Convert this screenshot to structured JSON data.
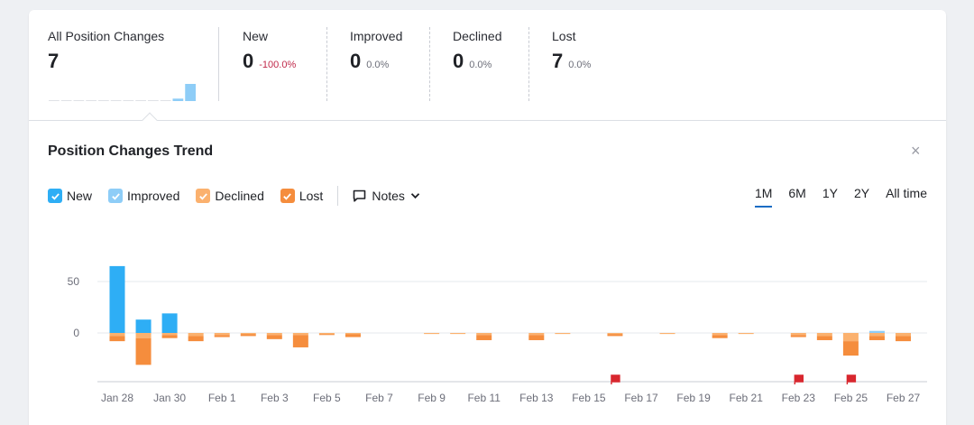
{
  "summary": {
    "items": [
      {
        "label": "All Position Changes",
        "value": "7",
        "change": ""
      },
      {
        "label": "New",
        "value": "0",
        "change": "-100.0%"
      },
      {
        "label": "Improved",
        "value": "0",
        "change": "0.0%"
      },
      {
        "label": "Declined",
        "value": "0",
        "change": "0.0%"
      },
      {
        "label": "Lost",
        "value": "7",
        "change": "0.0%"
      }
    ]
  },
  "trend": {
    "title": "Position Changes Trend",
    "close_label": "×",
    "legend": [
      {
        "label": "New",
        "color": "#2eaef5"
      },
      {
        "label": "Improved",
        "color": "#8ecdf7"
      },
      {
        "label": "Declined",
        "color": "#fbb16e"
      },
      {
        "label": "Lost",
        "color": "#f58d3d"
      }
    ],
    "notes_label": "Notes",
    "ranges": [
      "1M",
      "6M",
      "1Y",
      "2Y",
      "All time"
    ],
    "active_range": "1M"
  },
  "chart_data": {
    "type": "bar",
    "ytick_labels": [
      "50",
      "0"
    ],
    "x": [
      "Jan 28",
      "Jan 29",
      "Jan 30",
      "Jan 31",
      "Feb 1",
      "Feb 2",
      "Feb 3",
      "Feb 4",
      "Feb 5",
      "Feb 6",
      "Feb 7",
      "Feb 8",
      "Feb 9",
      "Feb 10",
      "Feb 11",
      "Feb 12",
      "Feb 13",
      "Feb 14",
      "Feb 15",
      "Feb 16",
      "Feb 17",
      "Feb 18",
      "Feb 19",
      "Feb 20",
      "Feb 21",
      "Feb 22",
      "Feb 23",
      "Feb 24",
      "Feb 25",
      "Feb 26",
      "Feb 27"
    ],
    "xtick_labels": [
      "Jan 28",
      "Jan 30",
      "Feb 1",
      "Feb 3",
      "Feb 5",
      "Feb 7",
      "Feb 9",
      "Feb 11",
      "Feb 13",
      "Feb 15",
      "Feb 17",
      "Feb 19",
      "Feb 21",
      "Feb 23",
      "Feb 25",
      "Feb 27"
    ],
    "series": [
      {
        "name": "New",
        "values": [
          65,
          13,
          19,
          0,
          0,
          0,
          0,
          0,
          0,
          0,
          0,
          0,
          0,
          0,
          0,
          0,
          0,
          0,
          0,
          0,
          0,
          0,
          0,
          0,
          0,
          0,
          0,
          0,
          0,
          0,
          0
        ]
      },
      {
        "name": "Improved",
        "values": [
          0,
          0,
          0,
          0,
          0,
          0,
          0,
          0,
          0,
          0,
          0,
          0,
          0,
          0,
          0,
          0,
          0,
          0,
          0,
          0,
          0,
          0,
          0,
          0,
          0,
          0,
          0,
          0,
          0,
          2,
          0
        ]
      },
      {
        "name": "Declined",
        "values": [
          -3,
          -5,
          -2,
          -3,
          -2,
          -1,
          -2,
          -2,
          -1,
          -1,
          0,
          0,
          -1,
          -1,
          -2,
          0,
          -2,
          -1,
          0,
          -1,
          0,
          -1,
          0,
          -2,
          -1,
          0,
          -2,
          -3,
          -8,
          -3,
          -3
        ]
      },
      {
        "name": "Lost",
        "values": [
          -5,
          -26,
          -3,
          -5,
          -2,
          -2,
          -4,
          -12,
          -1,
          -3,
          0,
          0,
          0,
          0,
          -5,
          0,
          -5,
          0,
          0,
          -2,
          0,
          0,
          0,
          -3,
          0,
          0,
          -2,
          -4,
          -14,
          -4,
          -5
        ]
      }
    ],
    "summary_sparkline": [
      0,
      0,
      0,
      0,
      0,
      0,
      0,
      0,
      0,
      0,
      1,
      7
    ],
    "note_flags": [
      "Feb 16",
      "Feb 23",
      "Feb 25"
    ],
    "ylim": [
      -50,
      70
    ],
    "grid": true
  }
}
